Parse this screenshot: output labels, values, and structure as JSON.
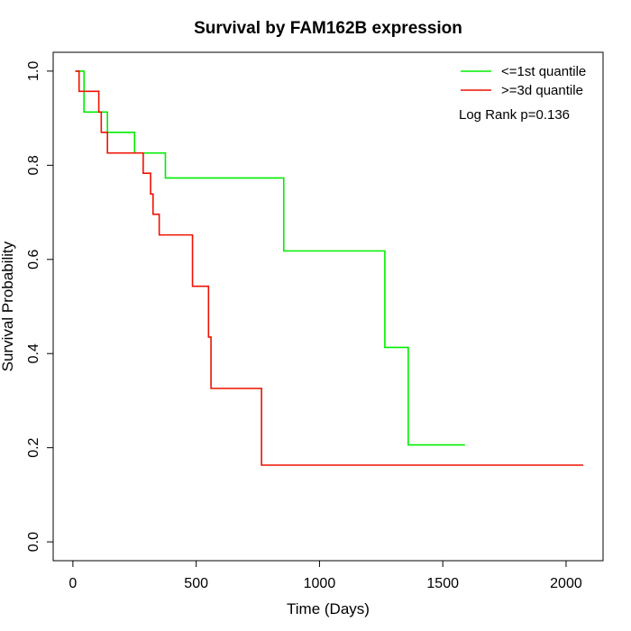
{
  "chart_data": {
    "type": "line",
    "title": "Survival by FAM162B expression",
    "xlabel": "Time (Days)",
    "ylabel": "Survival Probability",
    "xlim": [
      -80,
      2150
    ],
    "ylim": [
      -0.04,
      1.04
    ],
    "x_ticks": [
      0,
      500,
      1000,
      1500,
      2000
    ],
    "x_tick_labels": [
      "0",
      "500",
      "1000",
      "1500",
      "2000"
    ],
    "y_ticks": [
      0.0,
      0.2,
      0.4,
      0.6,
      0.8,
      1.0
    ],
    "y_tick_labels": [
      "0.0",
      "0.2",
      "0.4",
      "0.6",
      "0.8",
      "1.0"
    ],
    "grid": false,
    "legend_position": "top-right",
    "annotation": "Log Rank p=0.136",
    "series": [
      {
        "name": "<=1st quantile",
        "color": "#00ee00",
        "x": [
          10,
          45,
          140,
          250,
          375,
          855,
          1265,
          1360,
          1590
        ],
        "y": [
          1.0,
          0.913,
          0.87,
          0.826,
          0.773,
          0.618,
          0.413,
          0.206,
          0.206
        ]
      },
      {
        "name": ">=3d quantile",
        "color": "#ee1100",
        "x": [
          10,
          25,
          105,
          115,
          140,
          285,
          315,
          325,
          350,
          485,
          550,
          560,
          765,
          2070
        ],
        "y": [
          1.0,
          0.957,
          0.913,
          0.87,
          0.826,
          0.783,
          0.739,
          0.696,
          0.652,
          0.543,
          0.435,
          0.326,
          0.163,
          0.163
        ]
      }
    ]
  }
}
